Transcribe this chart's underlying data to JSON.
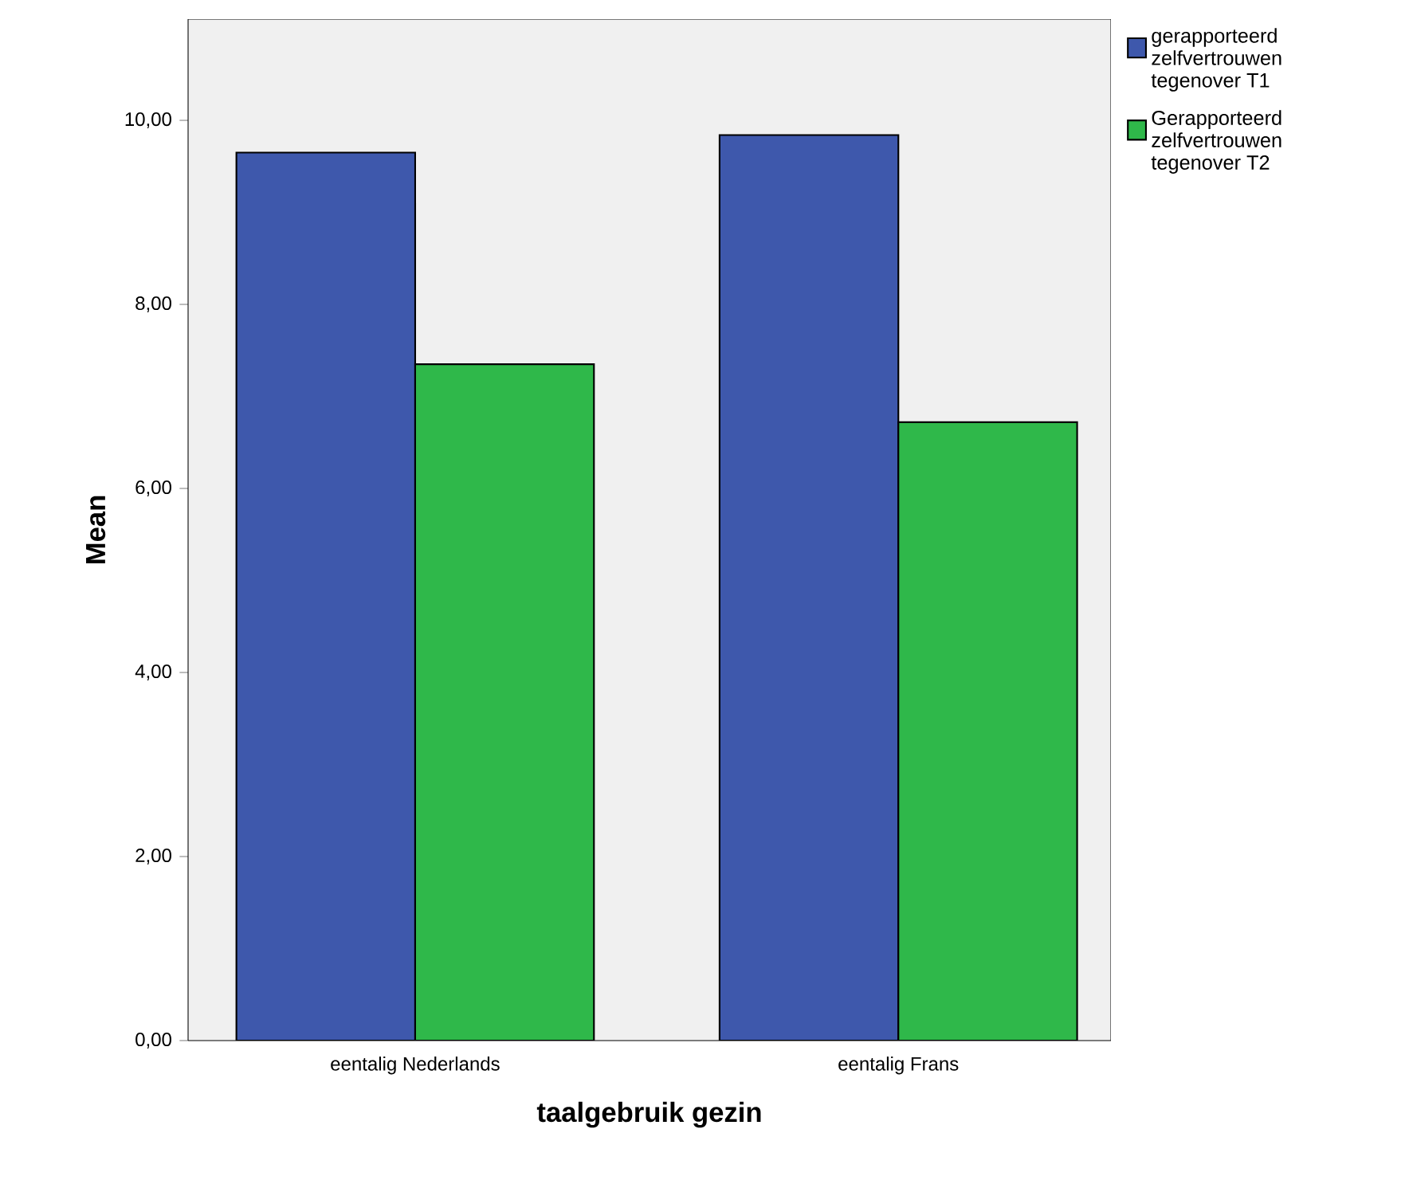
{
  "chart_data": {
    "type": "bar",
    "xlabel": "taalgebruik gezin",
    "ylabel": "Mean",
    "categories": [
      "eentalig Nederlands",
      "eentalig Frans"
    ],
    "series": [
      {
        "name": "gerapporteerd zelfvertrouwen tegenover T1",
        "color": "#3e58ac",
        "values": [
          9.65,
          9.84
        ]
      },
      {
        "name": "Gerapporteerd zelfvertrouwen tegenover T2",
        "color": "#2fb84a",
        "values": [
          7.35,
          6.72
        ]
      }
    ],
    "ylim": [
      0,
      11.1
    ],
    "yticks": [
      {
        "value": 0,
        "label": "0,00"
      },
      {
        "value": 2,
        "label": "2,00"
      },
      {
        "value": 4,
        "label": "4,00"
      },
      {
        "value": 6,
        "label": "6,00"
      },
      {
        "value": 8,
        "label": "8,00"
      },
      {
        "value": 10,
        "label": "10,00"
      }
    ],
    "legend": "top right",
    "grid": false
  }
}
